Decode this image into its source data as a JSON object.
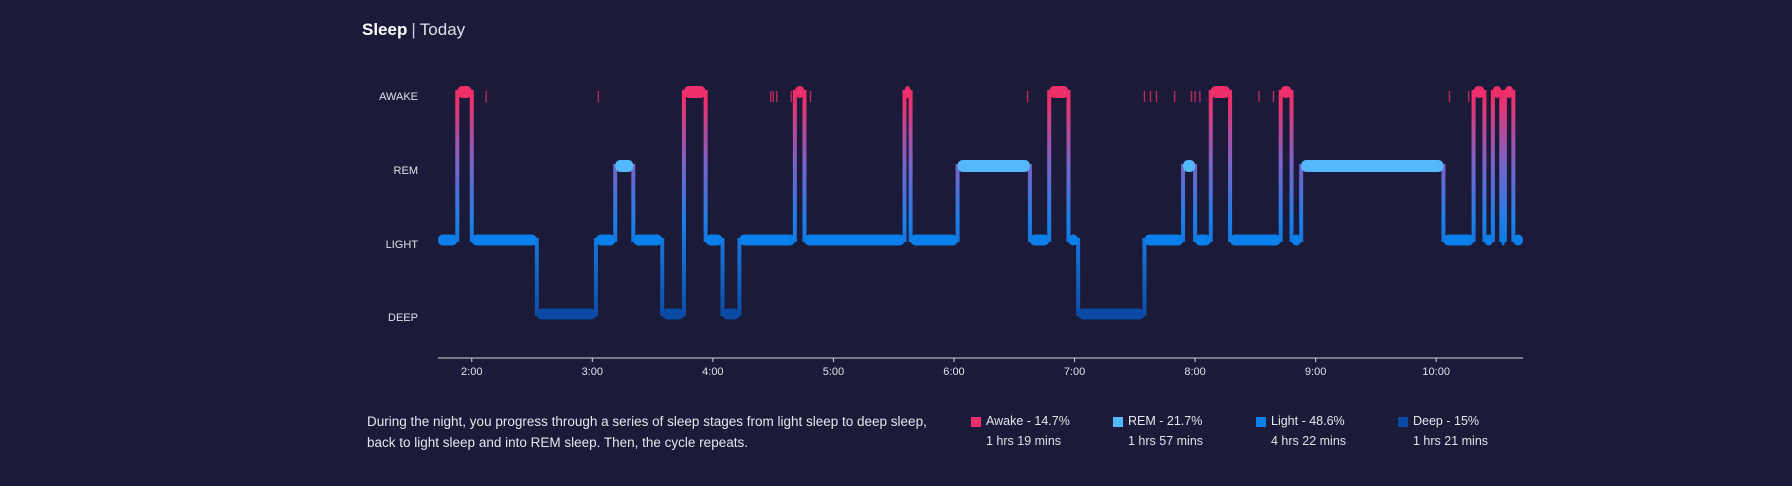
{
  "header": {
    "title": "Sleep",
    "separator": "|",
    "period": "Today"
  },
  "colors": {
    "background": "#1b1a38",
    "awake": "#ef2f6b",
    "rem": "#54b8ff",
    "light": "#0b7fea",
    "deep": "#0a4aa4",
    "axis": "#d8d8e4"
  },
  "description": "During the night, you progress through a series of sleep stages from light sleep to deep sleep, back to light sleep and into REM sleep. Then, the cycle repeats.",
  "legend": [
    {
      "stage": "awake",
      "label": "Awake - 14.7%",
      "duration": "1 hrs 19 mins",
      "color": "#ef2f6b"
    },
    {
      "stage": "rem",
      "label": "REM - 21.7%",
      "duration": "1 hrs 57 mins",
      "color": "#54b8ff"
    },
    {
      "stage": "light",
      "label": "Light - 48.6%",
      "duration": "4 hrs 22 mins",
      "color": "#0b7fea"
    },
    {
      "stage": "deep",
      "label": "Deep - 15%",
      "duration": "1 hrs 21 mins",
      "color": "#0a4aa4"
    }
  ],
  "chart_data": {
    "type": "area",
    "title": "Sleep | Today",
    "y_categories": [
      "AWAKE",
      "REM",
      "LIGHT",
      "DEEP"
    ],
    "x_ticks": [
      "2:00",
      "3:00",
      "4:00",
      "5:00",
      "6:00",
      "7:00",
      "8:00",
      "9:00",
      "10:00"
    ],
    "x_tick_values": [
      2,
      3,
      4,
      5,
      6,
      7,
      8,
      9,
      10
    ],
    "xlim": [
      1.72,
      10.72
    ],
    "segments": [
      {
        "stage": "LIGHT",
        "start": 1.72,
        "end": 1.88
      },
      {
        "stage": "AWAKE",
        "start": 1.88,
        "end": 2.0
      },
      {
        "stage": "LIGHT",
        "start": 2.0,
        "end": 2.54
      },
      {
        "stage": "DEEP",
        "start": 2.54,
        "end": 3.03
      },
      {
        "stage": "LIGHT",
        "start": 3.03,
        "end": 3.19
      },
      {
        "stage": "REM",
        "start": 3.19,
        "end": 3.34
      },
      {
        "stage": "LIGHT",
        "start": 3.34,
        "end": 3.58
      },
      {
        "stage": "DEEP",
        "start": 3.58,
        "end": 3.76
      },
      {
        "stage": "AWAKE",
        "start": 3.76,
        "end": 3.94
      },
      {
        "stage": "LIGHT",
        "start": 3.94,
        "end": 4.08
      },
      {
        "stage": "DEEP",
        "start": 4.08,
        "end": 4.22
      },
      {
        "stage": "LIGHT",
        "start": 4.22,
        "end": 4.68
      },
      {
        "stage": "AWAKE",
        "start": 4.68,
        "end": 4.76
      },
      {
        "stage": "LIGHT",
        "start": 4.76,
        "end": 5.59
      },
      {
        "stage": "AWAKE",
        "start": 5.59,
        "end": 5.64
      },
      {
        "stage": "LIGHT",
        "start": 5.64,
        "end": 6.03
      },
      {
        "stage": "REM",
        "start": 6.03,
        "end": 6.63
      },
      {
        "stage": "LIGHT",
        "start": 6.63,
        "end": 6.79
      },
      {
        "stage": "AWAKE",
        "start": 6.79,
        "end": 6.95
      },
      {
        "stage": "LIGHT",
        "start": 6.95,
        "end": 7.03
      },
      {
        "stage": "DEEP",
        "start": 7.03,
        "end": 7.58
      },
      {
        "stage": "LIGHT",
        "start": 7.58,
        "end": 7.9
      },
      {
        "stage": "REM",
        "start": 7.9,
        "end": 8.0
      },
      {
        "stage": "LIGHT",
        "start": 8.0,
        "end": 8.13
      },
      {
        "stage": "AWAKE",
        "start": 8.13,
        "end": 8.29
      },
      {
        "stage": "LIGHT",
        "start": 8.29,
        "end": 8.71
      },
      {
        "stage": "AWAKE",
        "start": 8.71,
        "end": 8.8
      },
      {
        "stage": "LIGHT",
        "start": 8.8,
        "end": 8.88
      },
      {
        "stage": "REM",
        "start": 8.88,
        "end": 10.06
      },
      {
        "stage": "LIGHT",
        "start": 10.06,
        "end": 10.31
      },
      {
        "stage": "AWAKE",
        "start": 10.31,
        "end": 10.4
      },
      {
        "stage": "LIGHT",
        "start": 10.4,
        "end": 10.47
      },
      {
        "stage": "AWAKE",
        "start": 10.47,
        "end": 10.54
      },
      {
        "stage": "LIGHT",
        "start": 10.54,
        "end": 10.57
      },
      {
        "stage": "AWAKE",
        "start": 10.57,
        "end": 10.64
      },
      {
        "stage": "LIGHT",
        "start": 10.64,
        "end": 10.72
      }
    ],
    "short_wakes": [
      2.12,
      3.05,
      4.48,
      4.5,
      4.53,
      4.65,
      4.81,
      6.61,
      7.58,
      7.63,
      7.68,
      7.83,
      7.97,
      8.0,
      8.04,
      8.53,
      8.65,
      10.11,
      10.27
    ]
  }
}
